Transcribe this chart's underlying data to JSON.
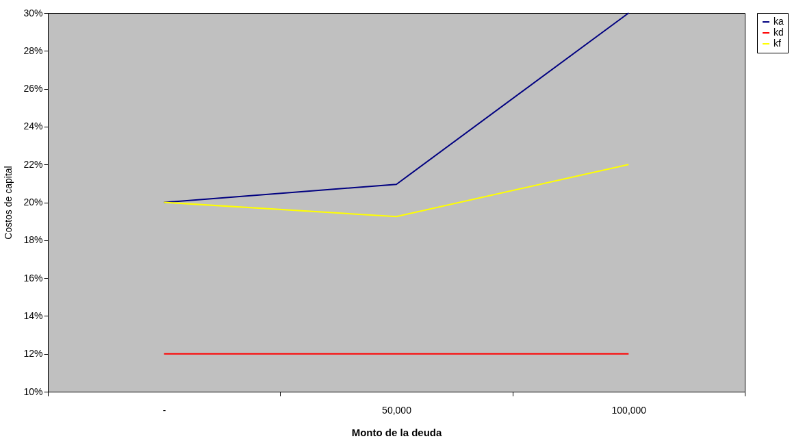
{
  "chart_data": {
    "type": "line",
    "xlabel": "Monto de la deuda",
    "ylabel": "Costos de capital",
    "categories": [
      "-",
      "50,000",
      "100,000"
    ],
    "series": [
      {
        "name": "ka",
        "color": "#000080",
        "values": [
          20,
          20.95,
          30
        ]
      },
      {
        "name": "kd",
        "color": "#ff0000",
        "values": [
          12,
          12,
          12
        ]
      },
      {
        "name": "kf",
        "color": "#ffff00",
        "values": [
          20,
          19.25,
          22
        ]
      }
    ],
    "ylim": [
      10,
      30
    ],
    "yticks": [
      {
        "value": 10,
        "label": "10%"
      },
      {
        "value": 12,
        "label": "12%"
      },
      {
        "value": 14,
        "label": "14%"
      },
      {
        "value": 16,
        "label": "16%"
      },
      {
        "value": 18,
        "label": "18%"
      },
      {
        "value": 20,
        "label": "20%"
      },
      {
        "value": 22,
        "label": "22%"
      },
      {
        "value": 24,
        "label": "24%"
      },
      {
        "value": 26,
        "label": "26%"
      },
      {
        "value": 28,
        "label": "28%"
      },
      {
        "value": 30,
        "label": "30%"
      }
    ],
    "grid": false,
    "legend": "right",
    "marker": "none",
    "line_style": "solid"
  }
}
